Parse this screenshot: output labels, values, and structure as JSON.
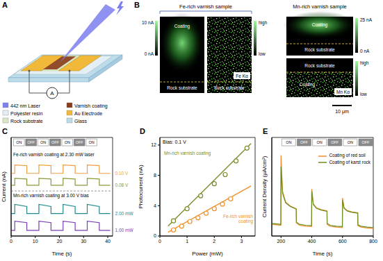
{
  "panel_a": {
    "panel_label": "A",
    "ammeter": "A",
    "legend": [
      {
        "label": "442 nm Laser",
        "color": "#7d7ff0"
      },
      {
        "label": "Varnish coating",
        "color": "#8a3b1b"
      },
      {
        "label": "Polyester resin",
        "color": "#e3eef5"
      },
      {
        "label": "Au Electrode",
        "color": "#f0b93a"
      },
      {
        "label": "Rock substrate",
        "color": "#dbe8c4"
      },
      {
        "label": "Glass",
        "color": "#bcdcec"
      }
    ]
  },
  "panel_b": {
    "panel_label": "B",
    "fe_title": "Fe-rich varnish sample",
    "mn_title": "Mn-rich varnish sample",
    "coating": "Coating",
    "rock": "Rock substrate",
    "current_scale": {
      "fe_max": "10 nA",
      "mn_max": "25 nA",
      "min": "0 nA"
    },
    "map_scale": {
      "max": "high",
      "min": "low"
    },
    "fe_map": "Fe Kα",
    "mn_map": "Mn Kα",
    "scale_bar": "10 μm"
  },
  "chart_data": [
    {
      "panel_label": "C",
      "type": "line",
      "x_label": "Time (s)",
      "y_label": "Current (nA)",
      "tick_labels": "x",
      "xlim": [
        0,
        42
      ],
      "xticks": [
        0,
        10,
        20,
        30,
        40
      ],
      "ylim": [
        0,
        14
      ],
      "annotations": [
        "Fe-rich varnish coating at 2.30 mW laser",
        "Mn-rich varnish coating at 3.00 V bias"
      ],
      "switch": {
        "labels": [
          "ON",
          "OFF",
          "ON",
          "OFF",
          "ON",
          "OFF",
          "ON"
        ],
        "starts": [
          1,
          6,
          11,
          16,
          21,
          26,
          31
        ],
        "ends": [
          5.5,
          10.5,
          15.5,
          20.5,
          25.5,
          30.5,
          35.5
        ]
      },
      "x": [
        0,
        1.5,
        1.5,
        6.5,
        6.5,
        11.5,
        11.5,
        16.5,
        16.5,
        21.5,
        21.5,
        26.5,
        26.5,
        31.5,
        31.5,
        36.5,
        36.5,
        41
      ],
      "series": [
        {
          "name": "0.10 V",
          "color": "#f0a040",
          "values": [
            8.9,
            8.9,
            10.1,
            10.0,
            8.9,
            8.9,
            10.1,
            10.0,
            8.9,
            8.9,
            10.1,
            10.0,
            8.9,
            8.9,
            10.1,
            10.0,
            8.9,
            8.9
          ]
        },
        {
          "name": "0.08 V",
          "color": "#8c9a3c",
          "values": [
            7.2,
            7.2,
            8.2,
            8.1,
            7.2,
            7.2,
            8.2,
            8.1,
            7.2,
            7.2,
            8.2,
            8.1,
            7.2,
            7.2,
            8.2,
            8.1,
            7.2,
            7.2
          ]
        },
        {
          "name": "2.00 mW",
          "color": "#1f8a8a",
          "values": [
            3.2,
            3.2,
            4.5,
            4.2,
            3.2,
            3.2,
            4.5,
            4.2,
            3.2,
            3.2,
            4.5,
            4.2,
            3.2,
            3.2,
            4.5,
            4.2,
            3.2,
            3.2
          ]
        },
        {
          "name": "1.00 mW",
          "color": "#7a3fb5",
          "values": [
            0.8,
            0.8,
            2.1,
            1.9,
            0.8,
            0.8,
            2.1,
            1.9,
            0.8,
            0.8,
            2.1,
            1.9,
            0.8,
            0.8,
            2.1,
            1.9,
            0.8,
            0.8
          ]
        }
      ]
    },
    {
      "panel_label": "D",
      "type": "scatter",
      "x_label": "Power (mW)",
      "y_label": "Photocurrent (nA)",
      "annotation": "Bias: 0.1 V",
      "xlim": [
        0,
        3.5
      ],
      "xticks": [
        0,
        1,
        2,
        3
      ],
      "ylim": [
        0,
        13
      ],
      "yticks": [
        0,
        4,
        8,
        12
      ],
      "series": [
        {
          "name": "Mn-rich varnish coating",
          "color": "#7a8c2a",
          "marker": "open_circle",
          "x": [
            0.5,
            1.0,
            1.5,
            2.0,
            2.4,
            2.8,
            3.2
          ],
          "values": [
            2.0,
            3.6,
            5.3,
            6.9,
            8.1,
            9.9,
            11.6
          ],
          "fit": {
            "x": [
              0.3,
              3.35
            ],
            "values": [
              1.3,
              12.2
            ]
          }
        },
        {
          "name": "Fe-rich varnish coating",
          "color": "#f0902a",
          "marker": "open_circle",
          "x": [
            0.5,
            0.8,
            1.1,
            1.4,
            1.7,
            2.0,
            2.3,
            2.6
          ],
          "values": [
            0.8,
            1.3,
            1.9,
            2.4,
            3.0,
            3.6,
            4.2,
            4.9
          ],
          "fit": {
            "x": [
              0.3,
              3.35
            ],
            "values": [
              0.5,
              6.6
            ]
          }
        }
      ]
    },
    {
      "panel_label": "E",
      "type": "line",
      "x_label": "Time (s)",
      "y_label": "Current Density (μA/cm²)",
      "tick_labels": "x",
      "xlim": [
        140,
        800
      ],
      "xticks": [
        200,
        400,
        600,
        800
      ],
      "ylim": [
        0,
        22
      ],
      "legend": "upper right",
      "switch": {
        "labels": [
          "ON",
          "OFF",
          "ON",
          "OFF",
          "ON",
          "OFF"
        ],
        "starts": [
          205,
          305,
          405,
          505,
          605,
          705
        ],
        "ends": [
          295,
          395,
          495,
          595,
          695,
          795
        ]
      },
      "x": [
        140,
        199,
        200,
        210,
        230,
        260,
        299,
        300,
        320,
        360,
        399,
        400,
        410,
        430,
        460,
        499,
        500,
        520,
        560,
        599,
        600,
        610,
        630,
        660,
        699,
        700,
        720,
        760,
        800
      ],
      "series": [
        {
          "name": "Coating of red soil",
          "color": "#f08c28",
          "values": [
            2.6,
            2.4,
            18,
            10,
            7.6,
            6.7,
            6.1,
            2.9,
            2.4,
            2.2,
            2.1,
            10.5,
            7.2,
            6.3,
            5.9,
            5.6,
            2.6,
            2.2,
            2.0,
            1.9,
            8.5,
            6.3,
            5.7,
            5.4,
            5.2,
            2.3,
            2.0,
            1.8,
            1.7
          ]
        },
        {
          "name": "Coating of karst rock",
          "color": "#6b8e23",
          "values": [
            2.8,
            2.6,
            15.5,
            9.5,
            7.4,
            6.6,
            6.0,
            3.1,
            2.6,
            2.4,
            2.3,
            10.0,
            7.0,
            6.2,
            5.8,
            5.5,
            2.8,
            2.4,
            2.2,
            2.1,
            8.0,
            6.2,
            5.6,
            5.3,
            5.1,
            2.5,
            2.2,
            2.0,
            1.9
          ]
        }
      ]
    }
  ]
}
